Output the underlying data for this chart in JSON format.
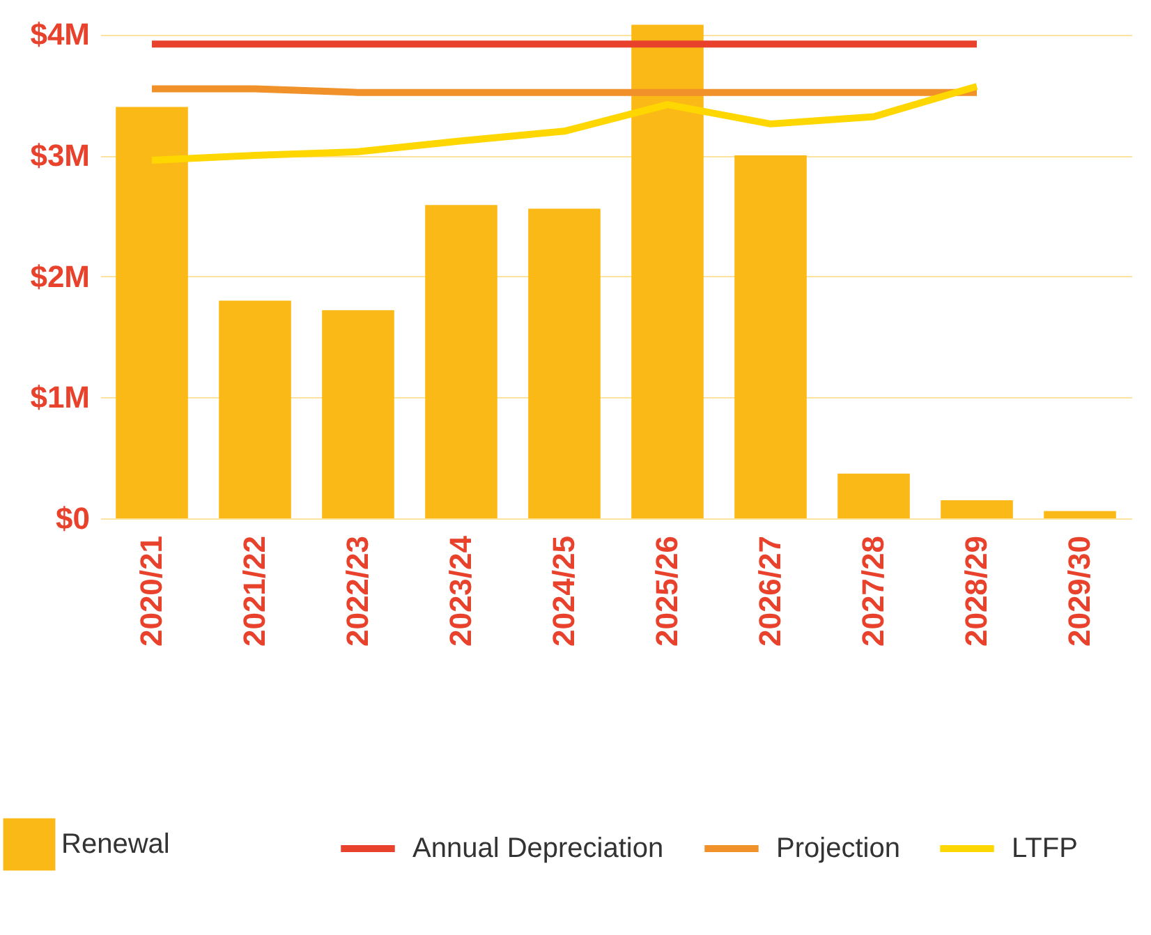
{
  "chart_data": {
    "type": "bar",
    "categories": [
      "2020/21",
      "2021/22",
      "2022/23",
      "2023/24",
      "2024/25",
      "2025/26",
      "2026/27",
      "2027/28",
      "2028/29",
      "2029/30"
    ],
    "series": [
      {
        "name": "Renewal",
        "color": "#fbb917",
        "values": [
          3.4,
          1.8,
          1.72,
          2.59,
          2.56,
          4.08,
          3.0,
          0.37,
          0.15,
          0.06
        ]
      },
      {
        "name": "Annual Depreciation",
        "type": "line",
        "color": "#e8412c",
        "values": [
          3.92,
          3.92,
          3.92,
          3.92,
          3.92,
          3.92,
          3.92,
          3.92,
          3.92,
          null
        ]
      },
      {
        "name": "Projection",
        "type": "line",
        "color": "#f0912a",
        "values": [
          3.55,
          3.55,
          3.52,
          3.52,
          3.52,
          3.52,
          3.52,
          3.52,
          3.52,
          null
        ]
      },
      {
        "name": "LTFP",
        "type": "line",
        "color": "#ffd700",
        "values": [
          2.96,
          3.0,
          3.03,
          3.12,
          3.2,
          3.42,
          3.26,
          3.32,
          3.57,
          null
        ]
      }
    ],
    "ylim": [
      0,
      4.1
    ],
    "yticks": [
      {
        "value": 0,
        "label": "$0"
      },
      {
        "value": 1,
        "label": "$1M"
      },
      {
        "value": 2,
        "label": "$2M"
      },
      {
        "value": 3,
        "label": "$3M"
      },
      {
        "value": 4,
        "label": "$4M"
      }
    ],
    "grid": "y",
    "legend": "bottom",
    "line_style": "solid",
    "marker": "none"
  }
}
